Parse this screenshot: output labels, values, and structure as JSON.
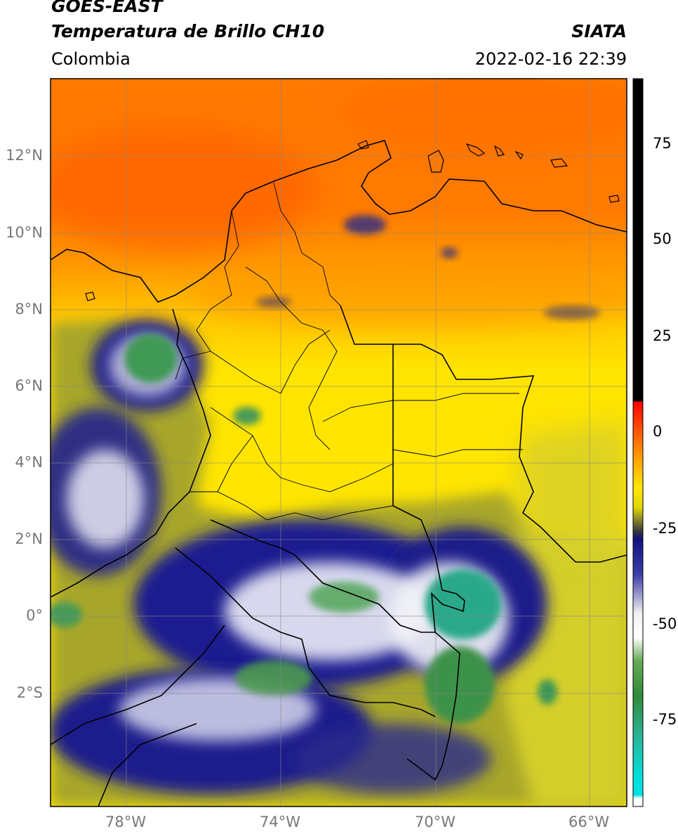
{
  "header": {
    "satellite": "GOES-EAST",
    "product": "Temperatura de Brillo CH10",
    "organization": "SIATA",
    "region": "Colombia",
    "datetime": "2022-02-16 22:39"
  },
  "map": {
    "lat_labels": [
      "12°N",
      "10°N",
      "8°N",
      "6°N",
      "4°N",
      "2°N",
      "0°",
      "2°S"
    ],
    "lon_labels": [
      "78°W",
      "74°W",
      "70°W",
      "66°W"
    ]
  },
  "colorbar": {
    "ticks": [
      "75",
      "50",
      "25",
      "0",
      "-25",
      "-50",
      "-75"
    ],
    "stops": [
      {
        "value": 90,
        "color": "#000000"
      },
      {
        "value": 8,
        "color": "#000000"
      },
      {
        "value": 7.9,
        "color": "#ff0000"
      },
      {
        "value": 0,
        "color": "#ff5a00"
      },
      {
        "value": -7,
        "color": "#ffa500"
      },
      {
        "value": -14,
        "color": "#ffe800"
      },
      {
        "value": -19,
        "color": "#e0d600"
      },
      {
        "value": -22,
        "color": "#8a8a2a"
      },
      {
        "value": -25,
        "color": "#3a3a3a"
      },
      {
        "value": -27,
        "color": "#101080"
      },
      {
        "value": -36,
        "color": "#3d3da8"
      },
      {
        "value": -46,
        "color": "#f2f2f2"
      },
      {
        "value": -52,
        "color": "#ffffff"
      },
      {
        "value": -58,
        "color": "#66aa55"
      },
      {
        "value": -67,
        "color": "#2e8a3a"
      },
      {
        "value": -77,
        "color": "#2ab596"
      },
      {
        "value": -88,
        "color": "#00e0e0"
      },
      {
        "value": -92,
        "color": "#00e0e0"
      },
      {
        "value": -93,
        "color": "#ffffff"
      }
    ]
  }
}
